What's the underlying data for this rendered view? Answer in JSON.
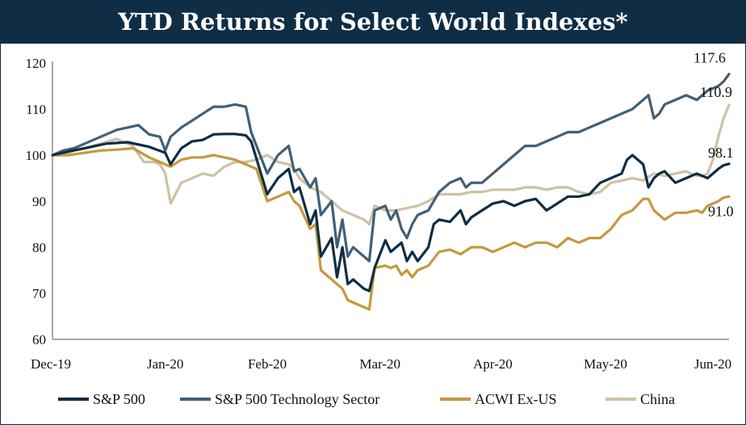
{
  "title": "YTD Returns for Select World Indexes*",
  "chart_data": {
    "type": "line",
    "title": "YTD Returns for Select World Indexes*",
    "xlabel": "",
    "ylabel": "",
    "ylim": [
      60,
      120
    ],
    "yticks": [
      60,
      70,
      80,
      90,
      100,
      110,
      120
    ],
    "xlim": [
      0,
      126
    ],
    "xticks": [
      {
        "label": "Dec-19",
        "x": 0
      },
      {
        "label": "Jan-20",
        "x": 21
      },
      {
        "label": "Feb-20",
        "x": 40
      },
      {
        "label": "Mar-20",
        "x": 61
      },
      {
        "label": "Apr-20",
        "x": 82
      },
      {
        "label": "May-20",
        "x": 103
      },
      {
        "label": "Jun-20",
        "x": 123
      }
    ],
    "legend_position": "bottom",
    "series": [
      {
        "name": "S&P 500",
        "color": "#0f2d45",
        "end_label": "98.1",
        "x": [
          0,
          3,
          6,
          10,
          14,
          18,
          21,
          22,
          24,
          26,
          28,
          30,
          32,
          34,
          36,
          37,
          40,
          42,
          44,
          45,
          46,
          48,
          49,
          50,
          52,
          53,
          54,
          55,
          56,
          58,
          59,
          60,
          62,
          63,
          64,
          65,
          66,
          67,
          68,
          70,
          71,
          72,
          74,
          76,
          77,
          78,
          80,
          82,
          84,
          86,
          88,
          90,
          92,
          94,
          96,
          98,
          100,
          102,
          104,
          106,
          107,
          108,
          110,
          111,
          112,
          113,
          114,
          116,
          118,
          120,
          122,
          124,
          125,
          126
        ],
        "values": [
          100,
          100.8,
          101.5,
          102.5,
          102.8,
          101.8,
          100.5,
          98,
          101.5,
          103,
          103.3,
          104.5,
          104.6,
          104.6,
          104.3,
          103,
          91.5,
          95,
          97,
          92,
          93,
          85,
          88,
          78,
          82,
          73.5,
          80,
          72,
          73,
          71,
          70.5,
          75.5,
          81.5,
          79,
          80,
          81,
          77,
          79,
          77,
          80,
          85,
          86,
          85.5,
          88,
          85,
          86.5,
          88,
          89.5,
          90,
          89,
          90,
          90.5,
          88,
          89.5,
          91,
          91,
          91.5,
          94,
          95,
          96,
          99,
          100,
          98,
          93,
          95,
          96,
          96.5,
          94,
          95,
          96,
          95,
          97,
          97.8,
          98.1
        ]
      },
      {
        "name": "S&P 500 Technology Sector",
        "color": "#435f75",
        "end_label": "117.6",
        "x": [
          0,
          2,
          4,
          6,
          9,
          12,
          14,
          16,
          18,
          20,
          21,
          22,
          24,
          26,
          28,
          30,
          32,
          34,
          36,
          37,
          40,
          42,
          44,
          45,
          46,
          48,
          49,
          50,
          52,
          53,
          54,
          55,
          56,
          58,
          59,
          60,
          62,
          63,
          64,
          65,
          66,
          67,
          68,
          70,
          71,
          72,
          74,
          76,
          77,
          78,
          80,
          82,
          84,
          86,
          88,
          90,
          92,
          94,
          96,
          98,
          100,
          102,
          104,
          106,
          108,
          110,
          111,
          112,
          113,
          114,
          116,
          118,
          120,
          122,
          124,
          125,
          126
        ],
        "values": [
          100,
          101,
          101.5,
          102.5,
          104,
          105.5,
          106,
          106.5,
          104.5,
          104,
          101,
          104,
          106,
          107.5,
          109,
          110.5,
          110.5,
          111,
          110.5,
          105,
          96,
          100,
          102,
          96.5,
          97,
          93,
          95,
          87,
          90,
          80,
          86,
          78,
          80,
          78,
          77,
          88,
          89,
          86,
          88,
          84,
          82,
          85,
          87,
          88,
          90,
          92,
          94,
          95,
          93,
          94,
          94,
          96,
          98,
          100,
          102,
          102,
          103,
          104,
          105,
          105,
          106,
          107,
          108,
          109,
          110,
          112,
          113,
          108,
          109,
          111,
          112,
          113,
          112,
          114,
          115,
          116,
          117.6
        ]
      },
      {
        "name": "ACWI Ex-US",
        "color": "#c29a3e",
        "end_label": "91.0",
        "x": [
          0,
          3,
          6,
          9,
          12,
          15,
          18,
          20,
          22,
          24,
          26,
          28,
          30,
          32,
          34,
          36,
          38,
          40,
          42,
          44,
          45,
          46,
          48,
          49,
          50,
          52,
          53,
          54,
          55,
          56,
          58,
          59,
          60,
          62,
          63,
          64,
          65,
          66,
          67,
          68,
          70,
          72,
          74,
          76,
          78,
          80,
          82,
          84,
          86,
          88,
          90,
          92,
          94,
          96,
          98,
          100,
          102,
          104,
          106,
          108,
          110,
          111,
          112,
          114,
          116,
          118,
          120,
          121,
          122,
          124,
          125,
          126
        ],
        "values": [
          100,
          100,
          100.5,
          101,
          101.2,
          101.5,
          99.5,
          98.5,
          97.5,
          99,
          99.5,
          99.5,
          100,
          99.5,
          99,
          98,
          97,
          90,
          91,
          92,
          90,
          89,
          84,
          85,
          75,
          73,
          72,
          71,
          68.5,
          68,
          67,
          66.5,
          75.5,
          76,
          75.5,
          76,
          74,
          75,
          73.5,
          75,
          76,
          79,
          79.5,
          78.5,
          80,
          80,
          79,
          80,
          81,
          80,
          81,
          81,
          80,
          82,
          81,
          82,
          82,
          84,
          87,
          88,
          90.5,
          90.5,
          88,
          86,
          87.5,
          87.5,
          88,
          87.5,
          89,
          90,
          90.8,
          91.0
        ]
      },
      {
        "name": "China",
        "color": "#cdc2a4",
        "end_label": "110.9",
        "x": [
          0,
          2,
          4,
          6,
          9,
          12,
          15,
          17,
          19,
          20,
          21,
          22,
          24,
          26,
          28,
          30,
          32,
          34,
          36,
          38,
          40,
          42,
          44,
          45,
          46,
          48,
          50,
          52,
          54,
          56,
          58,
          59,
          60,
          62,
          64,
          66,
          68,
          70,
          72,
          74,
          76,
          78,
          80,
          82,
          84,
          86,
          88,
          90,
          92,
          94,
          96,
          98,
          100,
          102,
          104,
          106,
          108,
          110,
          112,
          114,
          116,
          118,
          120,
          121,
          122,
          123,
          124,
          125,
          126
        ],
        "values": [
          100,
          100,
          101,
          101.5,
          102.5,
          103.5,
          102,
          98.5,
          98.5,
          98,
          96,
          89.5,
          94,
          95,
          96,
          95.5,
          97.5,
          98.5,
          98.5,
          99,
          100,
          98.5,
          98,
          97,
          95,
          93,
          92,
          90,
          88,
          87,
          86,
          85,
          89,
          88,
          88,
          88.5,
          89,
          90,
          91.5,
          91.5,
          91.5,
          92,
          92,
          92.5,
          92.5,
          92.5,
          93,
          93,
          92.5,
          93,
          93,
          92,
          91.5,
          92,
          94,
          94.5,
          95,
          94.5,
          96,
          95.5,
          96,
          96.5,
          95.5,
          95.5,
          96,
          99,
          104,
          108,
          110.9
        ]
      }
    ]
  }
}
